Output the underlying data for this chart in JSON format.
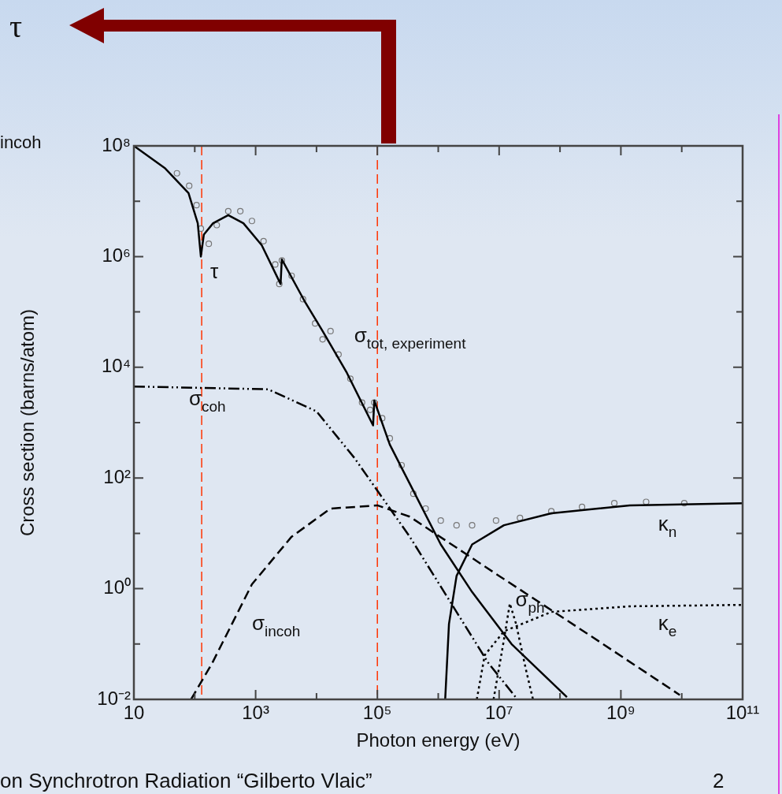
{
  "chart_data": {
    "type": "line",
    "xlabel": "Photon energy (eV)",
    "ylabel": "Cross section (barns/atom)",
    "log": "xy",
    "xlim": [
      10,
      100000000000.0
    ],
    "ylim": [
      0.01,
      100000000.0
    ],
    "xticks": [
      10,
      {
        "value": 100,
        "label": null
      },
      {
        "value": 1000,
        "label": "10³"
      },
      {
        "value": 10000,
        "label": null
      },
      {
        "value": 100000,
        "label": "10⁵"
      },
      {
        "value": 1000000,
        "label": null
      },
      {
        "value": 10000000,
        "label": "10⁷"
      },
      {
        "value": 100000000,
        "label": null
      },
      {
        "value": 1000000000,
        "label": "10⁹"
      },
      {
        "value": 10000000000,
        "label": null
      },
      {
        "value": 100000000000,
        "label": "10¹¹"
      }
    ],
    "yticks": [
      {
        "value": 0.01,
        "label": "10⁻²"
      },
      {
        "value": 0.1,
        "label": null
      },
      {
        "value": 1,
        "label": "10⁰"
      },
      {
        "value": 10,
        "label": null
      },
      {
        "value": 100,
        "label": "10²"
      },
      {
        "value": 1000,
        "label": null
      },
      {
        "value": 10000,
        "label": "10⁴"
      },
      {
        "value": 100000,
        "label": null
      },
      {
        "value": 1000000,
        "label": "10⁶"
      },
      {
        "value": 10000000,
        "label": null
      },
      {
        "value": 100000000,
        "label": "10⁸"
      }
    ],
    "series": [
      {
        "name": "τ",
        "color": "#000000",
        "line_style": "solid",
        "x": [
          10,
          32,
          79,
          112,
          126,
          141,
          200,
          355,
          630,
          1260,
          2570,
          2690,
          6300,
          12600,
          31600,
          85000,
          89000,
          160000,
          340000,
          1100000,
          3600000,
          16000000,
          130000000
        ],
        "values": [
          100000000.0,
          40000000.0,
          14000000.0,
          4000000.0,
          1000000.0,
          2500000.0,
          4000000.0,
          5600000.0,
          4000000.0,
          1600000.0,
          320000.0,
          890000.0,
          160000.0,
          45000.0,
          7900,
          890,
          2500,
          400,
          79,
          6.3,
          0.87,
          0.1,
          0.011
        ]
      },
      {
        "name": "σ$_{coh}$",
        "color": "#000000",
        "line_style": "dashdot",
        "x": [
          10,
          1600,
          10000,
          42000,
          100000,
          340000,
          1500000,
          6600000,
          20000000
        ],
        "values": [
          4500,
          4000,
          1600,
          230,
          59,
          8.7,
          0.63,
          0.046,
          0.01
        ]
      },
      {
        "name": "σ$_{incoh}$",
        "color": "#000000",
        "line_style": "dashed",
        "x": [
          87,
          195,
          870,
          3900,
          17000,
          100000,
          340000,
          10000000,
          320000000,
          9300000000
        ],
        "values": [
          0.01,
          0.046,
          1.2,
          8.7,
          28,
          32,
          20,
          1.7,
          0.14,
          0.012
        ]
      },
      {
        "name": "κ$_{n}$",
        "color": "#000000",
        "line_style": "solid",
        "x": [
          1300000,
          1500000,
          2000000,
          3600000,
          12000000,
          72000000,
          1400000000,
          100000000000
        ],
        "values": [
          0.01,
          0.23,
          1.7,
          6.3,
          14,
          23,
          32,
          35
        ]
      },
      {
        "name": "κ$_{e}$",
        "color": "#000000",
        "line_style": "dotted",
        "x": [
          4300000,
          5800000,
          12000000,
          72000000,
          1400000000,
          100000000000
        ],
        "values": [
          0.01,
          0.063,
          0.17,
          0.38,
          0.48,
          0.51
        ]
      },
      {
        "name": "σ$_{ph}$",
        "color": "#000000",
        "line_style": "dotted",
        "x": [
          8100000,
          12000000,
          15000000,
          19000000,
          28000000,
          36000000
        ],
        "values": [
          0.01,
          0.12,
          0.54,
          0.23,
          0.032,
          0.01
        ]
      },
      {
        "name": "σ$_{tot, experiment}$",
        "type": "scatter",
        "marker": "circle",
        "color": "#777777",
        "x": [
          51,
          81,
          107,
          126,
          170,
          230,
          355,
          560,
          870,
          1350,
          2100,
          2450,
          2700,
          3900,
          6000,
          9500,
          12600,
          17000,
          23000,
          36000,
          56000,
          76000,
          89000,
          120000,
          160000,
          250000,
          390000,
          620000,
          1100000,
          2000000,
          3600000,
          8900000,
          22000000,
          72000000,
          230000000,
          780000000,
          2600000000,
          11000000000
        ],
        "values": [
          32000000.0,
          19000000.0,
          8500000.0,
          3200000.0,
          1700000.0,
          3700000.0,
          6600000.0,
          6600000.0,
          4400000.0,
          1900000.0,
          720000.0,
          320000.0,
          850000.0,
          450000.0,
          170000.0,
          62000.0,
          32000.0,
          45000.0,
          17000.0,
          6200,
          2300,
          1700,
          2300,
          1200,
          520,
          170,
          52,
          28,
          17,
          14,
          14,
          17,
          19,
          25,
          30,
          35,
          37,
          35
        ]
      }
    ],
    "ref_lines": [
      {
        "axis": "x",
        "value": 130,
        "color": "#ff3300",
        "line_style": "dashed"
      },
      {
        "axis": "x",
        "value": 100000,
        "color": "#ff3300",
        "line_style": "dashed"
      }
    ],
    "annotations": [
      "τ",
      "incoh",
      "on Synchrotron Radiation “Gilberto Vlaic”",
      "2"
    ]
  }
}
